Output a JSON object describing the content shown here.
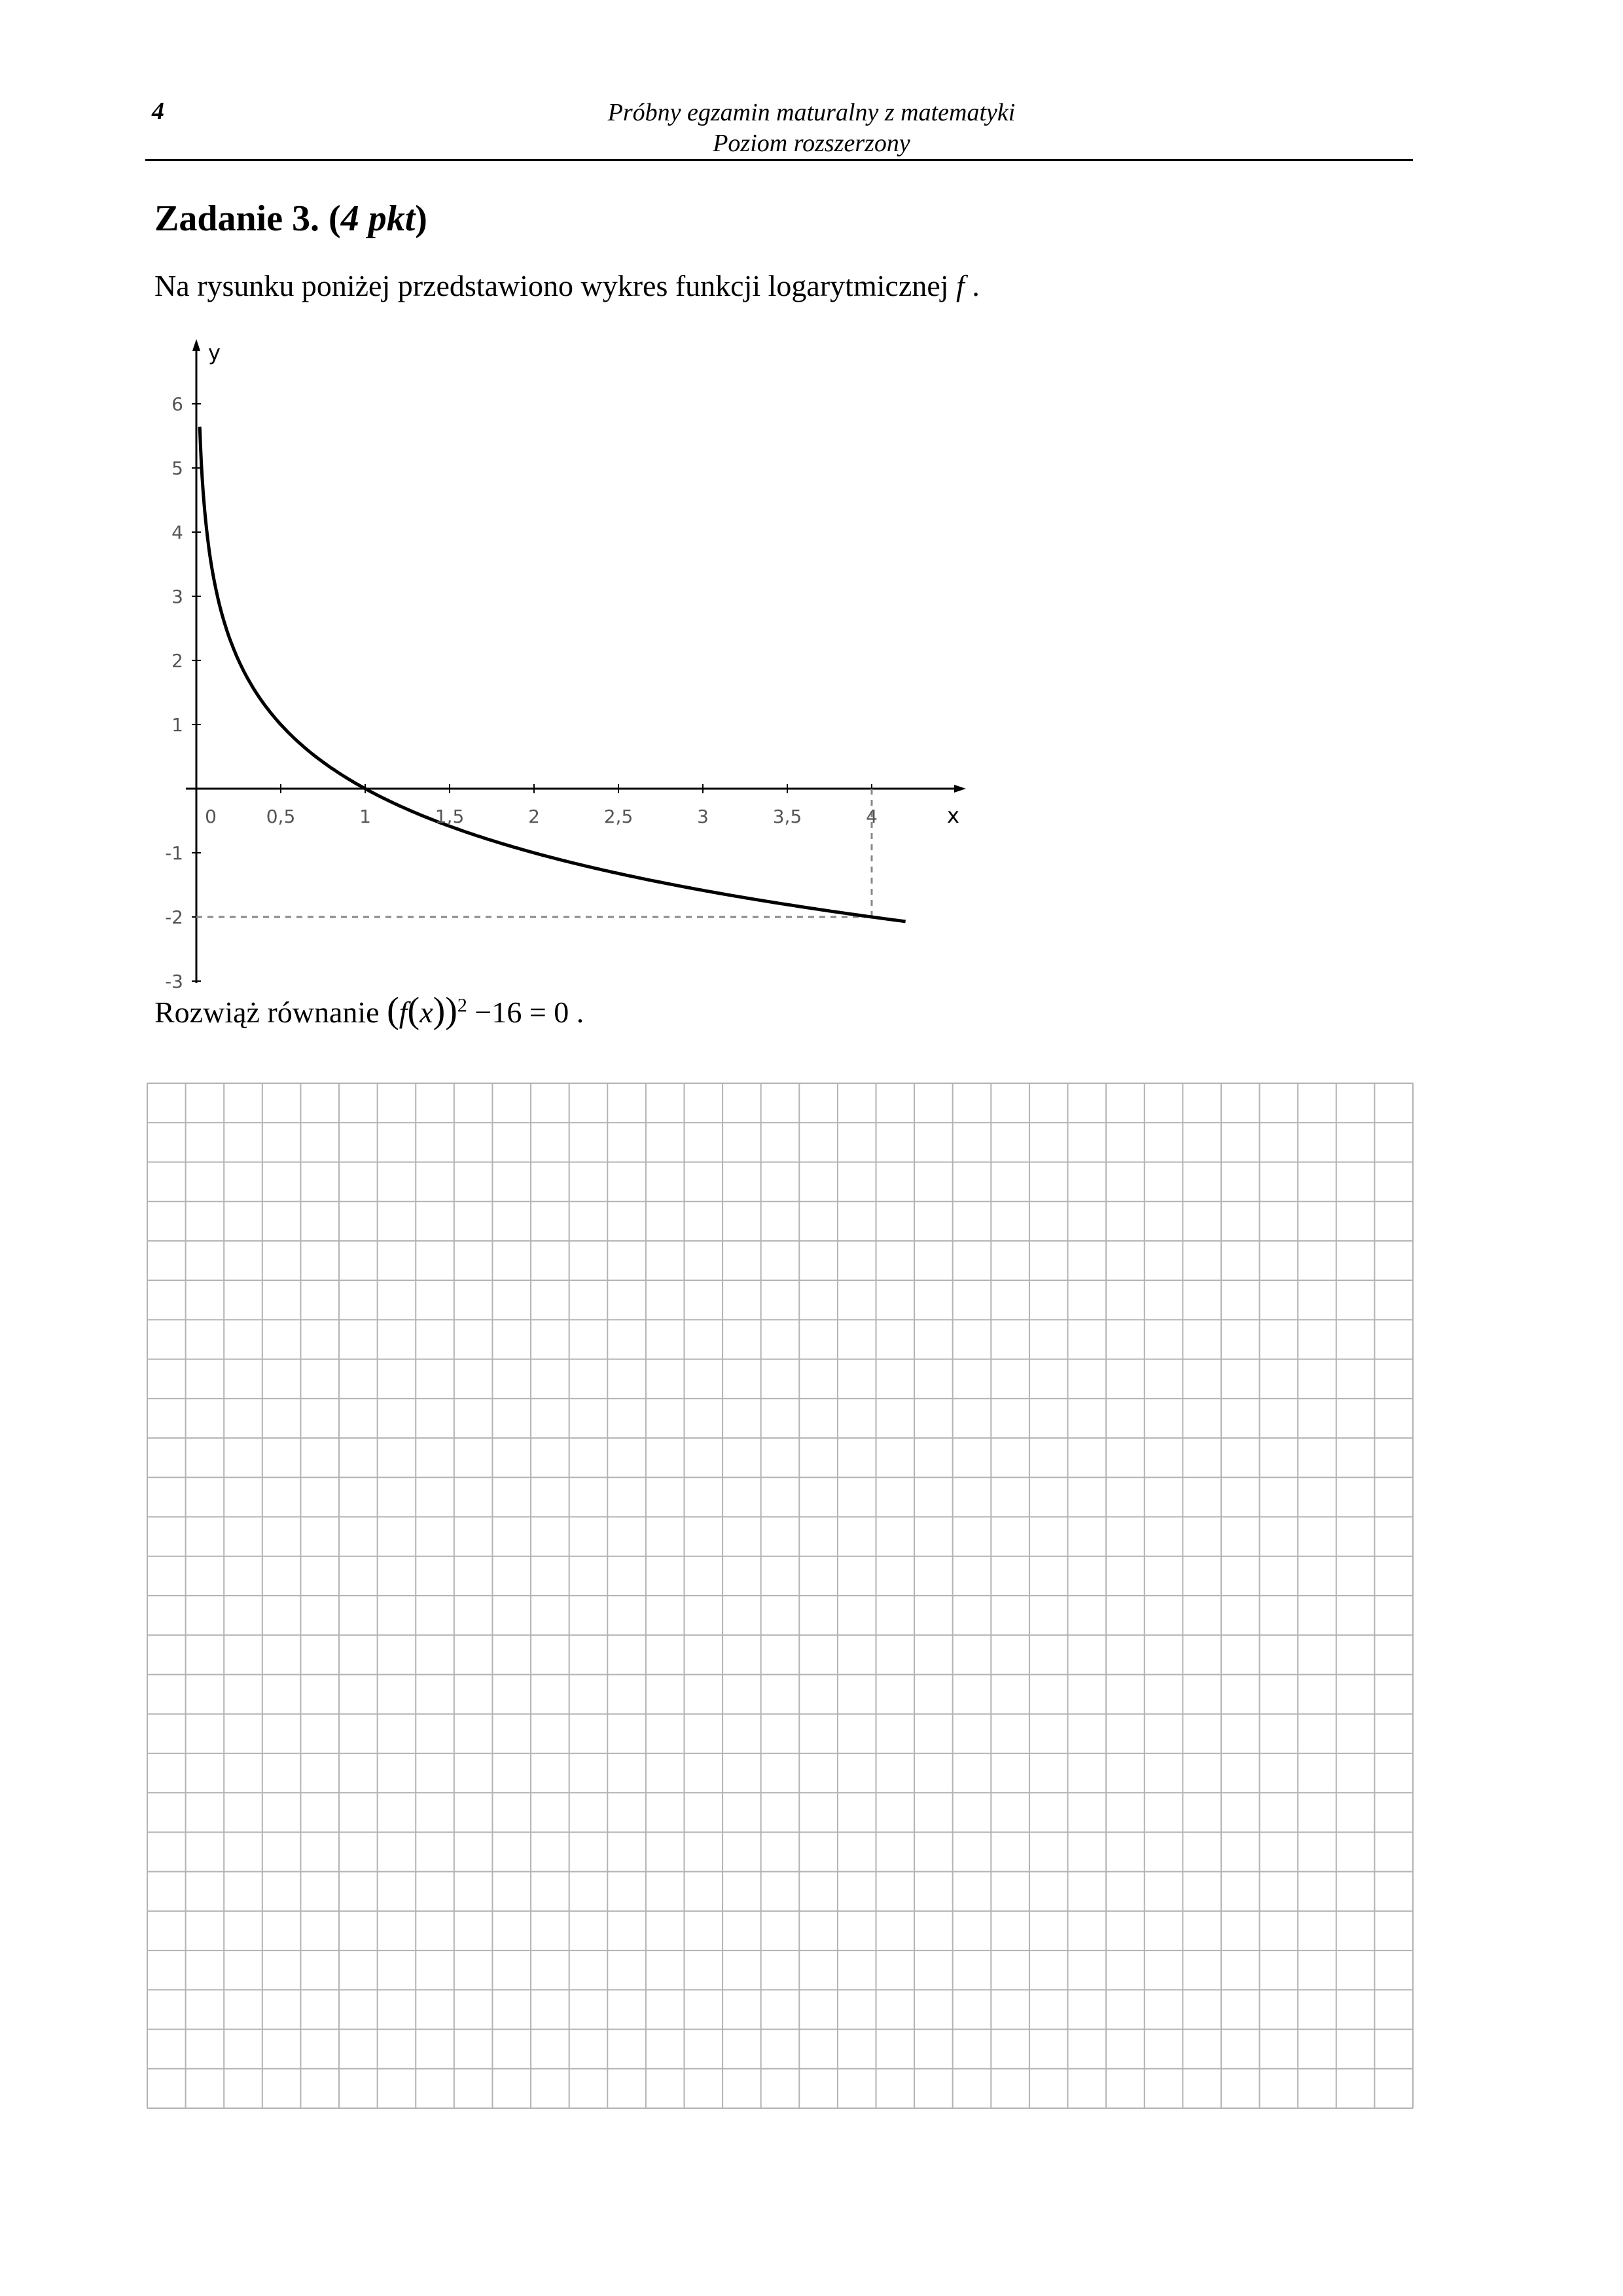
{
  "header": {
    "page_number": "4",
    "title_line1": "Próbny egzamin maturalny z matematyki",
    "title_line2": "Poziom rozszerzony"
  },
  "task": {
    "title_main": "Zadanie 3. (",
    "title_points": "4 pkt",
    "title_close": ")",
    "intro": "Na rysunku poniżej przedstawiono wykres funkcji logarytmicznej ",
    "intro_var": "f",
    "intro_end": " .",
    "instruction": "Rozwiąż równanie ",
    "eq_f": "f",
    "eq_x": "x",
    "eq_power": "2",
    "eq_rest": " −16 = 0 ."
  },
  "chart_data": {
    "type": "line",
    "xlabel": "x",
    "ylabel": "y",
    "xlim": [
      -0.1,
      4.5
    ],
    "ylim": [
      -3,
      6.5
    ],
    "x_ticks": [
      "0",
      "0,5",
      "1",
      "1,5",
      "2",
      "2,5",
      "3",
      "3,5",
      "4"
    ],
    "x_tick_values": [
      0,
      0.5,
      1,
      1.5,
      2,
      2.5,
      3,
      3.5,
      4
    ],
    "y_ticks": [
      "6",
      "5",
      "4",
      "3",
      "2",
      "1",
      "-1",
      "-2",
      "-3"
    ],
    "y_tick_values": [
      6,
      5,
      4,
      3,
      2,
      1,
      -1,
      -2,
      -3
    ],
    "series": [
      {
        "function": "log base 0.5 of x",
        "x": [
          0.02,
          0.05,
          0.1,
          0.15,
          0.2,
          0.3,
          0.4,
          0.5,
          0.6,
          0.7,
          0.8,
          0.9,
          1,
          1.25,
          1.5,
          2,
          2.5,
          3,
          3.5,
          4,
          4.2
        ],
        "y": [
          5.64,
          4.32,
          3.32,
          2.74,
          2.32,
          1.74,
          1.32,
          1,
          0.74,
          0.51,
          0.32,
          0.15,
          0,
          -0.32,
          -0.58,
          -1,
          -1.32,
          -1.58,
          -1.81,
          -2,
          -2.07
        ]
      }
    ],
    "guide_point": {
      "x": 4,
      "y": -2
    },
    "grid": false,
    "colors": {
      "curve": "#000000",
      "axes": "#000000",
      "guides": "#888888",
      "ticks": "#555555"
    }
  },
  "answer_grid": {
    "columns": 33,
    "rows": 26,
    "line_color": "#b3b3b3"
  }
}
